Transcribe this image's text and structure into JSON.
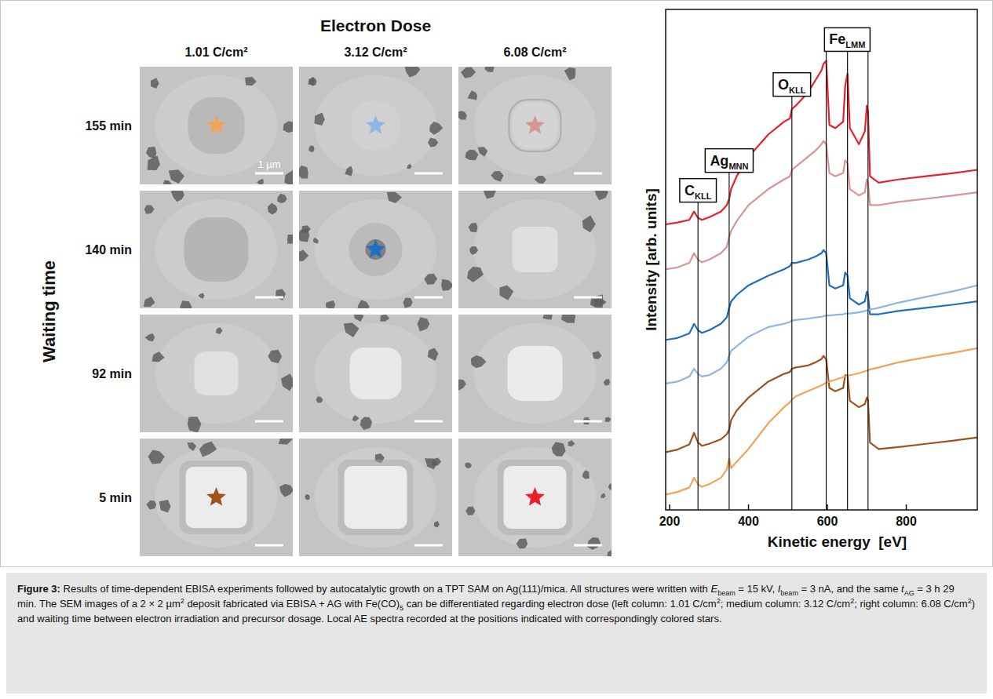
{
  "sem_images": {
    "header": "Electron Dose",
    "row_axis_title": "Waiting time",
    "columns": [
      "1.01 C/cm²",
      "3.12 C/cm²",
      "6.08 C/cm²"
    ],
    "rows": [
      "155 min",
      "140 min",
      "92 min",
      "5 min"
    ],
    "scale_bar": "1 µm",
    "stars": [
      {
        "row": "155 min",
        "column": "1.01 C/cm²",
        "color": "#f2a35a"
      },
      {
        "row": "155 min",
        "column": "3.12 C/cm²",
        "color": "#8fb6e2"
      },
      {
        "row": "155 min",
        "column": "6.08 C/cm²",
        "color": "#d99494"
      },
      {
        "row": "140 min",
        "column": "3.12 C/cm²",
        "color": "#1f6fc0"
      },
      {
        "row": "5 min",
        "column": "1.01 C/cm²",
        "color": "#a0521e"
      },
      {
        "row": "5 min",
        "column": "6.08 C/cm²",
        "color": "#e8202a"
      }
    ]
  },
  "chart_data": {
    "type": "line",
    "xlabel": "Kinetic energy  [eV]",
    "ylabel": "Intensity [arb. units]",
    "x": [
      190,
      220,
      250,
      262,
      272,
      282,
      300,
      330,
      345,
      351,
      356,
      370,
      400,
      450,
      490,
      505,
      510,
      520,
      550,
      570,
      585,
      590,
      597,
      605,
      620,
      640,
      645,
      651,
      657,
      680,
      695,
      700,
      703,
      708,
      730,
      780,
      850,
      920,
      980
    ],
    "xlim": [
      190,
      980
    ],
    "xticks": [
      200,
      400,
      600,
      800
    ],
    "ylim": [
      22,
      100
    ],
    "tick_labels": "x",
    "series": [
      {
        "color": "#e8202a",
        "values": [
          66.5,
          66.8,
          67.2,
          68.5,
          67.5,
          67.2,
          67.6,
          68.5,
          69.5,
          70.5,
          72,
          74,
          77,
          80.5,
          82.5,
          83,
          84.5,
          85,
          87,
          89,
          90.5,
          91.5,
          92,
          82,
          81.5,
          82.5,
          88,
          90,
          81.5,
          79,
          81,
          85,
          84,
          74,
          73,
          73.5,
          74,
          74.5,
          75
        ]
      },
      {
        "color": "#d99494",
        "values": [
          59.5,
          59.8,
          60.5,
          62,
          61,
          60.6,
          61,
          62,
          63,
          64.5,
          65.5,
          67,
          69.5,
          72,
          73.5,
          74,
          75,
          75.5,
          77,
          78,
          79,
          79.5,
          79,
          74.5,
          74,
          74.5,
          76.5,
          76,
          72,
          71,
          71.5,
          73.5,
          73,
          69.5,
          69.5,
          70,
          70.5,
          71,
          71.5
        ]
      },
      {
        "color": "#1f6fc0",
        "values": [
          48.5,
          48.8,
          49.5,
          51,
          50,
          49.6,
          50,
          51,
          52,
          53.5,
          54.5,
          55.5,
          57,
          58.5,
          59.5,
          60,
          60.5,
          60.5,
          61,
          61.5,
          62,
          62.5,
          62,
          57,
          56.5,
          57,
          59,
          58.5,
          55,
          54,
          54.5,
          56,
          55.5,
          52.5,
          52.5,
          53,
          53.5,
          54,
          54.5
        ]
      },
      {
        "color": "#8fb6e2",
        "values": [
          41.7,
          42,
          42.8,
          44,
          43.2,
          42.8,
          43,
          44,
          45,
          46,
          46.8,
          47.5,
          49,
          50.5,
          51,
          51.3,
          51.5,
          51.6,
          51.8,
          52,
          52.1,
          52.2,
          52.3,
          52.3,
          52.4,
          52.5,
          52.6,
          52.6,
          52.6,
          52.8,
          53,
          53.1,
          53.1,
          53.2,
          53.5,
          54.3,
          55.2,
          56.1,
          57
        ]
      },
      {
        "color": "#a0521e",
        "values": [
          31,
          31.4,
          32.2,
          34,
          32.5,
          32,
          32.3,
          33,
          33.8,
          34.5,
          36,
          37.5,
          39.5,
          42,
          43.2,
          43.5,
          44,
          44.2,
          44.5,
          45,
          45.5,
          46,
          45.5,
          41,
          40.5,
          41,
          43,
          43,
          39,
          38,
          38.5,
          39.5,
          39,
          32.5,
          31.5,
          31.8,
          32.3,
          32.8,
          33.3
        ]
      },
      {
        "color": "#f2a35a",
        "values": [
          24.4,
          24.8,
          25.5,
          27,
          26,
          25.6,
          26,
          27,
          28.3,
          30,
          28.5,
          29.5,
          31.5,
          35.5,
          38,
          38.8,
          39.2,
          39.7,
          40.5,
          41,
          41.4,
          41.6,
          41.8,
          42,
          42.3,
          42.7,
          42.8,
          42.9,
          43,
          43.3,
          43.6,
          43.7,
          43.8,
          43.9,
          44.2,
          45,
          45.8,
          46.5,
          47.2
        ]
      }
    ],
    "reference_lines": [
      {
        "label": "C",
        "subscript": "KLL",
        "x": [
          272
        ]
      },
      {
        "label": "Ag",
        "subscript": "MNN",
        "x": [
          351
        ]
      },
      {
        "label": "O",
        "subscript": "KLL",
        "x": [
          510
        ]
      },
      {
        "label": "Fe",
        "subscript": "LMM",
        "x": [
          597,
          651,
          703
        ]
      }
    ]
  },
  "caption": {
    "label": "Figure 3:",
    "segments": [
      {
        "text": " Results of time-dependent EBISA experiments followed by autocatalytic growth on a TPT SAM on Ag(111)/mica. All structures were written with "
      },
      {
        "text": "E",
        "style": "i"
      },
      {
        "text": "beam",
        "style": "sub"
      },
      {
        "text": " = 15 kV, "
      },
      {
        "text": "I",
        "style": "i"
      },
      {
        "text": "beam",
        "style": "sub"
      },
      {
        "text": " = 3 nA, and the same "
      },
      {
        "text": "t",
        "style": "i"
      },
      {
        "text": "AG",
        "style": "sub"
      },
      {
        "text": " = 3 h 29 min. The SEM images of a 2 × 2 µm"
      },
      {
        "text": "2",
        "style": "sup"
      },
      {
        "text": " deposit fabricated via EBISA + AG with Fe(CO)"
      },
      {
        "text": "5",
        "style": "sub"
      },
      {
        "text": " can be differentiated regarding electron dose (left column: 1.01 C/cm"
      },
      {
        "text": "2",
        "style": "sup"
      },
      {
        "text": "; medium column: 3.12 C/cm"
      },
      {
        "text": "2",
        "style": "sup"
      },
      {
        "text": "; right column: 6.08 C/cm"
      },
      {
        "text": "2",
        "style": "sup"
      },
      {
        "text": ") and waiting time between electron irradiation and precursor dosage. Local AE spectra recorded at the positions indicated with correspondingly colored stars."
      }
    ]
  }
}
